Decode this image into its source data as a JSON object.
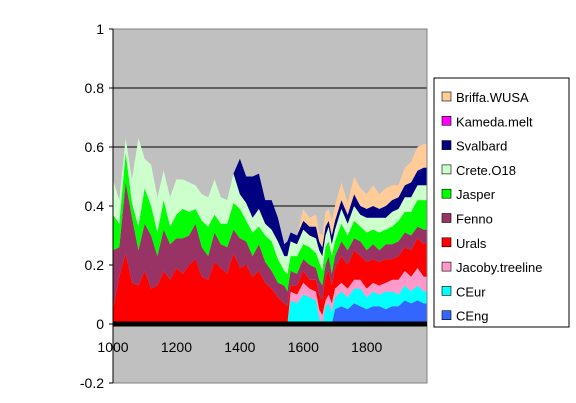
{
  "chart_data": {
    "type": "area",
    "stacked": true,
    "title": "",
    "xlabel": "",
    "ylabel": "",
    "xlim": [
      1000,
      1990
    ],
    "ylim": [
      -0.2,
      1.0
    ],
    "x_ticks": [
      {
        "value": 1000,
        "label": "1000"
      },
      {
        "value": 1200,
        "label": "1200"
      },
      {
        "value": 1400,
        "label": "1400"
      },
      {
        "value": 1600,
        "label": "1600"
      },
      {
        "value": 1800,
        "label": "1800"
      }
    ],
    "y_ticks": [
      {
        "value": 1,
        "label": "1"
      },
      {
        "value": 0.8,
        "label": "0.8"
      },
      {
        "value": 0.6,
        "label": "0.6"
      },
      {
        "value": 0.4,
        "label": "0.4"
      },
      {
        "value": 0.2,
        "label": "0.2"
      },
      {
        "value": 0,
        "label": "0"
      },
      {
        "value": -0.2,
        "label": "-0.2"
      }
    ],
    "grid": "horizontal",
    "plot_background": "#c0c0c0",
    "legend_position": "right",
    "x": [
      1000,
      1020,
      1040,
      1060,
      1080,
      1100,
      1120,
      1140,
      1160,
      1180,
      1200,
      1220,
      1240,
      1260,
      1280,
      1300,
      1320,
      1340,
      1360,
      1380,
      1400,
      1420,
      1440,
      1460,
      1480,
      1500,
      1520,
      1540,
      1550,
      1560,
      1580,
      1600,
      1620,
      1640,
      1650,
      1660,
      1670,
      1680,
      1690,
      1700,
      1720,
      1740,
      1760,
      1780,
      1800,
      1820,
      1840,
      1860,
      1880,
      1900,
      1920,
      1940,
      1960,
      1980,
      1990
    ],
    "series": [
      {
        "name": "CEng",
        "color": "#3366ff",
        "values": [
          0,
          0,
          0,
          0,
          0,
          0,
          0,
          0,
          0,
          0,
          0,
          0,
          0,
          0,
          0,
          0,
          0,
          0,
          0,
          0,
          0,
          0,
          0,
          0,
          0,
          0,
          0,
          0,
          0,
          0,
          0,
          0,
          0,
          0,
          0,
          0,
          0,
          0,
          0,
          0.05,
          0.06,
          0.05,
          0.07,
          0.06,
          0.05,
          0.06,
          0.06,
          0.05,
          0.06,
          0.06,
          0.08,
          0.07,
          0.08,
          0.07,
          0.07
        ]
      },
      {
        "name": "CEur",
        "color": "#00ffff",
        "values": [
          0,
          0,
          0,
          0,
          0,
          0,
          0,
          0,
          0,
          0,
          0,
          0,
          0,
          0,
          0,
          0,
          0,
          0,
          0,
          0,
          0,
          0,
          0,
          0,
          0,
          0,
          0,
          0,
          0,
          0.08,
          0.07,
          0.1,
          0.09,
          0.08,
          0.02,
          0,
          0.06,
          0.07,
          0.04,
          0.04,
          0.05,
          0.04,
          0.05,
          0.06,
          0.04,
          0.05,
          0.04,
          0.06,
          0.05,
          0.04,
          0.05,
          0.04,
          0.05,
          0.04,
          0.04
        ]
      },
      {
        "name": "Jacoby.treeline",
        "color": "#ff99cc",
        "values": [
          0,
          0,
          0,
          0,
          0,
          0,
          0,
          0,
          0,
          0,
          0,
          0,
          0,
          0,
          0,
          0,
          0,
          0,
          0,
          0,
          0,
          0,
          0,
          0,
          0,
          0,
          0,
          0,
          0,
          0.03,
          0.03,
          0.04,
          0.03,
          0.03,
          0.03,
          0.03,
          0.02,
          0.03,
          0.03,
          0.03,
          0.03,
          0.03,
          0.03,
          0.03,
          0.03,
          0.03,
          0.03,
          0.03,
          0.04,
          0.05,
          0.05,
          0.05,
          0.06,
          0.05,
          0.05
        ]
      },
      {
        "name": "Urals",
        "color": "#ff0000",
        "values": [
          0.05,
          0.16,
          0.24,
          0.14,
          0.13,
          0.18,
          0.12,
          0.13,
          0.18,
          0.15,
          0.19,
          0.17,
          0.2,
          0.22,
          0.16,
          0.15,
          0.21,
          0.19,
          0.17,
          0.24,
          0.19,
          0.2,
          0.16,
          0.18,
          0.14,
          0.12,
          0.09,
          0.07,
          0.06,
          0.02,
          0.03,
          0.04,
          0.03,
          0.04,
          0.05,
          0.05,
          0.08,
          0.08,
          0.06,
          0.07,
          0.09,
          0.08,
          0.1,
          0.08,
          0.09,
          0.08,
          0.08,
          0.08,
          0.07,
          0.08,
          0.08,
          0.09,
          0.1,
          0.11,
          0.12
        ]
      },
      {
        "name": "Fenno",
        "color": "#993366",
        "values": [
          0.2,
          0.1,
          0.24,
          0.22,
          0.12,
          0.16,
          0.18,
          0.1,
          0.14,
          0.12,
          0.1,
          0.12,
          0.1,
          0.12,
          0.1,
          0.08,
          0.1,
          0.08,
          0.09,
          0.08,
          0.1,
          0.08,
          0.07,
          0.09,
          0.07,
          0.06,
          0.05,
          0.06,
          0.05,
          0.05,
          0.04,
          0.04,
          0.05,
          0.04,
          0.05,
          0.05,
          0.04,
          0.05,
          0.04,
          0.04,
          0.05,
          0.05,
          0.04,
          0.05,
          0.04,
          0.05,
          0.04,
          0.05,
          0.05,
          0.05,
          0.05,
          0.05,
          0.04,
          0.05,
          0.04
        ]
      },
      {
        "name": "Jasper",
        "color": "#00ff00",
        "values": [
          0.12,
          0.08,
          0.1,
          0.05,
          0.08,
          0.12,
          0.1,
          0.08,
          0.1,
          0.06,
          0.08,
          0.1,
          0.08,
          0.05,
          0.09,
          0.1,
          0.06,
          0.07,
          0.08,
          0.09,
          0.1,
          0.07,
          0.08,
          0.06,
          0.09,
          0.1,
          0.08,
          0.05,
          0.06,
          0.05,
          0.06,
          0.05,
          0.06,
          0.05,
          0.06,
          0.05,
          0.06,
          0.05,
          0.06,
          0.05,
          0.06,
          0.05,
          0.06,
          0.05,
          0.06,
          0.05,
          0.06,
          0.05,
          0.06,
          0.07,
          0.07,
          0.08,
          0.09,
          0.1,
          0.1
        ]
      },
      {
        "name": "Crete.O18",
        "color": "#ccffcc",
        "values": [
          0.12,
          0.08,
          0.05,
          0.08,
          0.3,
          0.1,
          0.14,
          0.12,
          0.1,
          0.1,
          0.12,
          0.1,
          0.1,
          0.08,
          0.09,
          0.1,
          0.12,
          0.09,
          0.08,
          0.1,
          0.05,
          0.06,
          0.05,
          0.06,
          0.04,
          0.04,
          0.06,
          0.05,
          0.06,
          0.05,
          0.04,
          0.05,
          0.04,
          0.05,
          0.04,
          0.05,
          0.04,
          0.05,
          0.04,
          0.04,
          0.05,
          0.04,
          0.05,
          0.04,
          0.05,
          0.04,
          0.05,
          0.04,
          0.05,
          0.04,
          0.05,
          0.05,
          0.05,
          0.05,
          0.05
        ]
      },
      {
        "name": "Svalbard",
        "color": "#000080",
        "values": [
          0,
          0,
          0,
          0,
          0,
          0,
          0,
          0,
          0,
          0,
          0,
          0,
          0,
          0,
          0,
          0,
          0,
          0,
          0,
          0,
          0.12,
          0.09,
          0.14,
          0.12,
          0.08,
          0.1,
          0.08,
          0.04,
          0.05,
          0.03,
          0.03,
          0.03,
          0.03,
          0.04,
          0.03,
          0.03,
          0.03,
          0.02,
          0.03,
          0.03,
          0.03,
          0.03,
          0.04,
          0.03,
          0.03,
          0.04,
          0.03,
          0.04,
          0.04,
          0.04,
          0.04,
          0.05,
          0.05,
          0.06,
          0.06
        ]
      },
      {
        "name": "Kameda.melt",
        "color": "#ff00ff",
        "values": [
          0,
          0,
          0,
          0,
          0,
          0,
          0,
          0,
          0,
          0,
          0,
          0,
          0,
          0,
          0,
          0,
          0,
          0,
          0,
          0,
          0,
          0,
          0,
          0,
          0,
          0,
          0,
          0,
          0,
          0,
          0,
          0,
          0,
          0,
          0,
          0,
          0,
          0,
          0,
          0,
          0,
          0,
          0,
          0,
          0,
          0,
          0,
          0,
          0,
          0,
          0,
          0,
          0,
          0,
          0
        ]
      },
      {
        "name": "Briffa.WUSA",
        "color": "#ffcc99",
        "values": [
          0,
          0,
          0,
          0,
          0,
          0,
          0,
          0,
          0,
          0,
          0,
          0,
          0,
          0,
          0,
          0,
          0,
          0,
          0,
          0,
          0,
          0,
          0,
          0,
          0,
          0,
          0,
          0,
          0,
          0,
          0,
          0.04,
          0.03,
          0.04,
          0.03,
          0.04,
          0.05,
          0.04,
          0.05,
          0.05,
          0.06,
          0.04,
          0.06,
          0.06,
          0.05,
          0.07,
          0.05,
          0.06,
          0.05,
          0.04,
          0.06,
          0.07,
          0.08,
          0.08,
          0.08
        ]
      }
    ],
    "overlay_line": {
      "color": "#000000",
      "values": [
        0,
        0,
        0,
        0,
        0,
        0,
        0,
        0,
        0,
        0,
        0,
        0,
        0,
        0,
        0,
        0,
        0,
        0,
        0,
        0,
        0,
        0,
        0,
        0,
        0,
        0,
        0,
        0,
        0,
        0,
        0,
        0,
        0,
        0,
        0,
        0,
        0,
        0,
        0,
        0,
        0,
        0,
        0,
        0,
        0,
        0,
        0,
        0,
        0,
        0,
        0,
        0,
        0,
        0,
        0
      ]
    },
    "legend_order": [
      "Briffa.WUSA",
      "Kameda.melt",
      "Svalbard",
      "Crete.O18",
      "Jasper",
      "Fenno",
      "Urals",
      "Jacoby.treeline",
      "CEur",
      "CEng"
    ]
  }
}
